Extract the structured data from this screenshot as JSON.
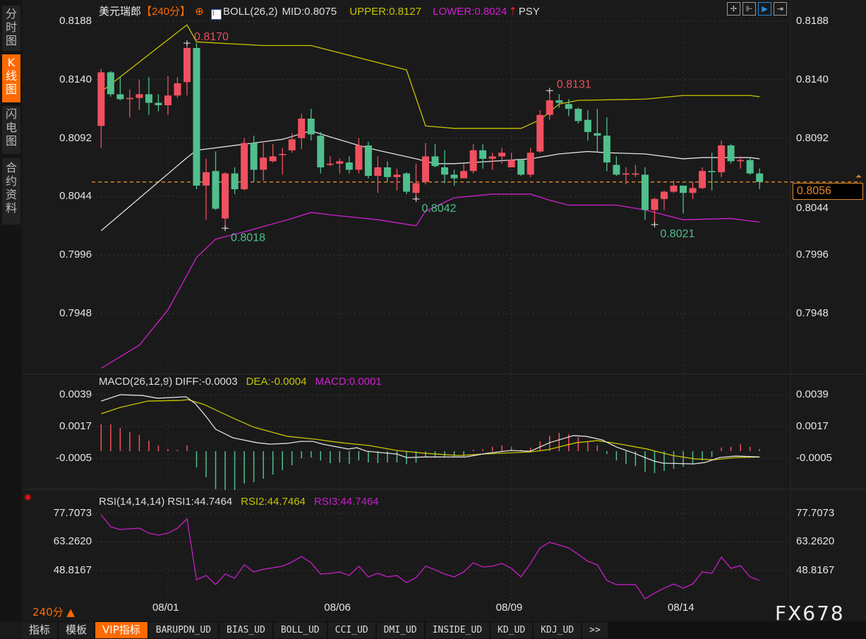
{
  "sidebar": {
    "items": [
      {
        "label": "分时图",
        "active": false
      },
      {
        "label": "K线图",
        "active": true
      },
      {
        "label": "闪电图",
        "active": false
      },
      {
        "label": "合约资料",
        "active": false
      }
    ]
  },
  "header": {
    "symbol": "美元瑞郎",
    "period": "【240分】",
    "boll_label": "BOLL(26,2)",
    "mid": "MID:0.8075",
    "upper": "UPPER:0.8127",
    "lower": "LOWER:0.8024",
    "psy": "PSY",
    "icon_globe": "globe-icon",
    "icon_indicator": "indicator-chart-icon",
    "icon_arrow": "red-up-arrow-icon"
  },
  "toolbar": {
    "icons": [
      "crosshair-icon",
      "zoom-range-icon",
      "play-cursor-icon",
      "scroll-end-icon"
    ],
    "active_index": 2
  },
  "colors": {
    "up": "#f0505f",
    "down": "#4fbf8d",
    "mid": "#e0e0e0",
    "upper": "#c8c400",
    "lower": "#d020d0",
    "diff": "#e0e0e0",
    "dea": "#c8c400",
    "rsi": "#c81ec8",
    "current": "#e08a2c",
    "accent": "#ff6a00"
  },
  "main_axis": {
    "ticks": [
      "0.8188",
      "0.8140",
      "0.8092",
      "0.8044",
      "0.7996",
      "0.7948"
    ],
    "tick_values": [
      0.8188,
      0.814,
      0.8092,
      0.8044,
      0.7996,
      0.7948
    ],
    "current_price": "0.8056",
    "current_value": 0.8056
  },
  "macd": {
    "title": "MACD(26,12,9)",
    "diff": "DIFF:-0.0003",
    "dea": "DEA:-0.0004",
    "macd": "MACD:0.0001",
    "ticks": [
      "0.0039",
      "0.0017",
      "-0.0005"
    ],
    "tick_values": [
      0.0039,
      0.0017,
      -0.0005
    ]
  },
  "rsi": {
    "title": "RSI(14,14,14)",
    "rsi1": "RSI1:44.7464",
    "rsi2": "RSI2:44.7464",
    "rsi3": "RSI3:44.7464",
    "ticks": [
      "77.7073",
      "63.2620",
      "48.8167"
    ],
    "tick_values": [
      77.7073,
      63.262,
      48.8167
    ],
    "icon": "sun-indicator-icon"
  },
  "footer": {
    "period": "240分 ▲",
    "brand": "FX678",
    "dates": [
      {
        "label": "08/01",
        "bar": 8
      },
      {
        "label": "08/06",
        "bar": 26
      },
      {
        "label": "08/09",
        "bar": 44
      },
      {
        "label": "08/14",
        "bar": 62
      }
    ]
  },
  "tabs": [
    {
      "label": "指标",
      "cn": true
    },
    {
      "label": "模板",
      "cn": true
    },
    {
      "label": "VIP指标",
      "cn": true,
      "active": true
    },
    {
      "label": "BARUPDN_UD"
    },
    {
      "label": "BIAS_UD"
    },
    {
      "label": "BOLL_UD"
    },
    {
      "label": "CCI_UD"
    },
    {
      "label": "DMI_UD"
    },
    {
      "label": "INSIDE_UD"
    },
    {
      "label": "KD_UD"
    },
    {
      "label": "KDJ_UD"
    },
    {
      "label": ">>"
    }
  ],
  "chart_data": {
    "type": "candlestick",
    "title": "美元瑞郎 240分",
    "ylim": [
      0.79,
      0.819
    ],
    "candles_ohlc": [
      [
        0.8102,
        0.8149,
        0.8084,
        0.8146
      ],
      [
        0.8146,
        0.8147,
        0.8126,
        0.8128
      ],
      [
        0.8128,
        0.8142,
        0.8123,
        0.8124
      ],
      [
        0.8124,
        0.8132,
        0.8109,
        0.8125
      ],
      [
        0.8125,
        0.814,
        0.8115,
        0.8128
      ],
      [
        0.8128,
        0.8142,
        0.8111,
        0.8121
      ],
      [
        0.8121,
        0.8128,
        0.8114,
        0.8119
      ],
      [
        0.8119,
        0.8143,
        0.8111,
        0.8127
      ],
      [
        0.8127,
        0.8142,
        0.8125,
        0.8137
      ],
      [
        0.8138,
        0.817,
        0.8127,
        0.8166
      ],
      [
        0.8166,
        0.817,
        0.805,
        0.8053
      ],
      [
        0.8053,
        0.8075,
        0.8025,
        0.8064
      ],
      [
        0.8065,
        0.8081,
        0.8033,
        0.8034
      ],
      [
        0.8026,
        0.8064,
        0.8018,
        0.8063
      ],
      [
        0.8063,
        0.8068,
        0.8046,
        0.805
      ],
      [
        0.805,
        0.8092,
        0.8049,
        0.8088
      ],
      [
        0.8088,
        0.8094,
        0.8056,
        0.8066
      ],
      [
        0.8066,
        0.8088,
        0.8057,
        0.8076
      ],
      [
        0.8073,
        0.8087,
        0.8072,
        0.8077
      ],
      [
        0.8078,
        0.8084,
        0.8062,
        0.8079
      ],
      [
        0.8082,
        0.8096,
        0.808,
        0.8091
      ],
      [
        0.8092,
        0.8112,
        0.8083,
        0.8108
      ],
      [
        0.8108,
        0.8116,
        0.809,
        0.8095
      ],
      [
        0.8094,
        0.8097,
        0.8063,
        0.8068
      ],
      [
        0.807,
        0.8077,
        0.8069,
        0.8071
      ],
      [
        0.8071,
        0.8075,
        0.8063,
        0.8073
      ],
      [
        0.8072,
        0.8077,
        0.8063,
        0.8066
      ],
      [
        0.8066,
        0.8092,
        0.8063,
        0.8086
      ],
      [
        0.8086,
        0.8089,
        0.8059,
        0.8061
      ],
      [
        0.8061,
        0.8077,
        0.8047,
        0.8068
      ],
      [
        0.8068,
        0.8073,
        0.8056,
        0.806
      ],
      [
        0.806,
        0.8067,
        0.8049,
        0.8062
      ],
      [
        0.8063,
        0.8064,
        0.8046,
        0.8048
      ],
      [
        0.8047,
        0.8071,
        0.8042,
        0.8055
      ],
      [
        0.8056,
        0.8088,
        0.8054,
        0.8077
      ],
      [
        0.8077,
        0.8087,
        0.8068,
        0.8069
      ],
      [
        0.8068,
        0.8082,
        0.8055,
        0.8062
      ],
      [
        0.8062,
        0.8066,
        0.8053,
        0.8059
      ],
      [
        0.8059,
        0.8071,
        0.8059,
        0.8065
      ],
      [
        0.8065,
        0.8087,
        0.8063,
        0.8082
      ],
      [
        0.8082,
        0.8087,
        0.8067,
        0.8075
      ],
      [
        0.8075,
        0.808,
        0.8066,
        0.8077
      ],
      [
        0.8077,
        0.8084,
        0.8071,
        0.808
      ],
      [
        0.8068,
        0.808,
        0.8068,
        0.8074
      ],
      [
        0.8074,
        0.8075,
        0.8061,
        0.8062
      ],
      [
        0.8062,
        0.8084,
        0.806,
        0.808
      ],
      [
        0.8081,
        0.8115,
        0.808,
        0.8111
      ],
      [
        0.8111,
        0.8131,
        0.8107,
        0.8123
      ],
      [
        0.8123,
        0.8128,
        0.8117,
        0.8121
      ],
      [
        0.812,
        0.8124,
        0.811,
        0.8116
      ],
      [
        0.8116,
        0.8117,
        0.8104,
        0.8106
      ],
      [
        0.8107,
        0.8115,
        0.809,
        0.8097
      ],
      [
        0.8096,
        0.8116,
        0.808,
        0.8094
      ],
      [
        0.8094,
        0.8109,
        0.8065,
        0.8072
      ],
      [
        0.807,
        0.8077,
        0.8061,
        0.8062
      ],
      [
        0.8062,
        0.8068,
        0.8054,
        0.8063
      ],
      [
        0.8062,
        0.807,
        0.806,
        0.8063
      ],
      [
        0.8062,
        0.8068,
        0.8025,
        0.8033
      ],
      [
        0.8033,
        0.8043,
        0.8021,
        0.8042
      ],
      [
        0.8042,
        0.8049,
        0.8033,
        0.8048
      ],
      [
        0.8048,
        0.8057,
        0.8047,
        0.8053
      ],
      [
        0.8053,
        0.8053,
        0.803,
        0.8047
      ],
      [
        0.8047,
        0.8056,
        0.8042,
        0.8051
      ],
      [
        0.8051,
        0.8068,
        0.805,
        0.8065
      ],
      [
        0.8065,
        0.808,
        0.8049,
        0.8064
      ],
      [
        0.8064,
        0.809,
        0.806,
        0.8086
      ],
      [
        0.8086,
        0.8087,
        0.8071,
        0.8073
      ],
      [
        0.8073,
        0.8077,
        0.8067,
        0.8074
      ],
      [
        0.8074,
        0.8076,
        0.8062,
        0.8063
      ],
      [
        0.8063,
        0.8067,
        0.805,
        0.8056
      ]
    ],
    "annotations": [
      {
        "bar": 10,
        "text": "0.8170",
        "kind": "high"
      },
      {
        "bar": 14,
        "text": "0.8018",
        "kind": "low"
      },
      {
        "bar": 34,
        "text": "0.8042",
        "kind": "low"
      },
      {
        "bar": 48,
        "text": "0.8131",
        "kind": "high"
      },
      {
        "bar": 59,
        "text": "0.8021",
        "kind": "low"
      }
    ],
    "boll_upper": [
      [
        1,
        0.813
      ],
      [
        10,
        0.8185
      ],
      [
        11,
        0.8171
      ],
      [
        18,
        0.8168
      ],
      [
        23,
        0.8168
      ],
      [
        33,
        0.8148
      ],
      [
        35,
        0.8102
      ],
      [
        38,
        0.81
      ],
      [
        45,
        0.81
      ],
      [
        47,
        0.8107
      ],
      [
        49,
        0.812
      ],
      [
        51,
        0.8123
      ],
      [
        58,
        0.8124
      ],
      [
        62,
        0.8127
      ],
      [
        69,
        0.8127
      ],
      [
        70,
        0.8126
      ]
    ],
    "boll_mid": [
      [
        1,
        0.8016
      ],
      [
        10,
        0.8076
      ],
      [
        11,
        0.8082
      ],
      [
        15,
        0.8086
      ],
      [
        20,
        0.8091
      ],
      [
        23,
        0.8098
      ],
      [
        25,
        0.8093
      ],
      [
        28,
        0.8086
      ],
      [
        30,
        0.8082
      ],
      [
        34,
        0.8075
      ],
      [
        36,
        0.8071
      ],
      [
        38,
        0.8071
      ],
      [
        44,
        0.8074
      ],
      [
        46,
        0.8075
      ],
      [
        49,
        0.8079
      ],
      [
        52,
        0.8081
      ],
      [
        54,
        0.808
      ],
      [
        58,
        0.8079
      ],
      [
        62,
        0.8075
      ],
      [
        64,
        0.8076
      ],
      [
        69,
        0.8076
      ],
      [
        70,
        0.8075
      ]
    ],
    "boll_lower": [
      [
        1,
        0.7903
      ],
      [
        5,
        0.7922
      ],
      [
        8,
        0.7951
      ],
      [
        11,
        0.7994
      ],
      [
        13,
        0.8009
      ],
      [
        16,
        0.8015
      ],
      [
        21,
        0.8026
      ],
      [
        23,
        0.8031
      ],
      [
        25,
        0.8029
      ],
      [
        30,
        0.8025
      ],
      [
        34,
        0.802
      ],
      [
        35,
        0.8032
      ],
      [
        38,
        0.8043
      ],
      [
        42,
        0.8046
      ],
      [
        46,
        0.8046
      ],
      [
        48,
        0.8041
      ],
      [
        50,
        0.8037
      ],
      [
        55,
        0.8037
      ],
      [
        58,
        0.8033
      ],
      [
        60,
        0.8029
      ],
      [
        62,
        0.8025
      ],
      [
        67,
        0.8026
      ],
      [
        70,
        0.8023
      ]
    ],
    "macd_hist": [
      0.00186,
      0.00186,
      0.00161,
      0.00132,
      0.00112,
      0.00073,
      0.00039,
      0.00015,
      0.0001,
      0.00039,
      -0.00112,
      -0.00181,
      -0.00264,
      -0.00269,
      -0.00269,
      -0.00225,
      -0.00215,
      -0.00191,
      -0.00161,
      -0.00132,
      -0.00098,
      -0.00049,
      -0.00044,
      -0.00064,
      -0.00083,
      -0.00078,
      -0.00088,
      -0.00064,
      -0.00078,
      -0.00083,
      -0.00078,
      -0.00078,
      -0.0009,
      -0.0008,
      -0.00044,
      -0.00044,
      -0.0004,
      -0.0004,
      -0.00035,
      0.0001,
      0.00015,
      0.0003,
      0.0004,
      0.0003,
      0.0001,
      0.00025,
      0.00068,
      0.00107,
      0.00127,
      0.00117,
      0.00098,
      0.00068,
      0.0004,
      -0.0002,
      -0.00064,
      -0.00088,
      -0.00103,
      -0.00142,
      -0.00152,
      -0.00137,
      -0.00122,
      -0.00108,
      -0.00093,
      -0.00064,
      -0.0004,
      0.00025,
      0.0003,
      0.00049,
      0.0003,
      0.00015
    ],
    "macd_diff": [
      [
        1,
        0.00347
      ],
      [
        3,
        0.00391
      ],
      [
        5.3,
        0.00386
      ],
      [
        6.9,
        0.00367
      ],
      [
        9.9,
        0.00377
      ],
      [
        10.9,
        0.00328
      ],
      [
        12,
        0.0024
      ],
      [
        13,
        0.00152
      ],
      [
        14.8,
        0.00093
      ],
      [
        17.3,
        0.00059
      ],
      [
        18.7,
        0.00049
      ],
      [
        20.5,
        0.00054
      ],
      [
        21.9,
        0.00068
      ],
      [
        23.2,
        0.00068
      ],
      [
        24.2,
        0.00049
      ],
      [
        26.9,
        0.00015
      ],
      [
        27.8,
        0.00024
      ],
      [
        28.8,
        0
      ],
      [
        32,
        -0.0002
      ],
      [
        33,
        -0.00044
      ],
      [
        35,
        -0.0004
      ],
      [
        37,
        -0.0004
      ],
      [
        39.2,
        -0.0004
      ],
      [
        41.4,
        -0.00015
      ],
      [
        43.9,
        5e-05
      ],
      [
        46,
        0
      ],
      [
        48,
        0.00059
      ],
      [
        50.5,
        0.00108
      ],
      [
        51.8,
        0.00103
      ],
      [
        53.5,
        0.00078
      ],
      [
        55,
        0.00029
      ],
      [
        56.9,
        -0.00015
      ],
      [
        58.9,
        -0.00068
      ],
      [
        59.9,
        -0.00083
      ],
      [
        63.1,
        -0.00088
      ],
      [
        64.3,
        -0.00078
      ],
      [
        65.8,
        -0.00044
      ],
      [
        67.5,
        -0.00034
      ],
      [
        70,
        -0.0004
      ]
    ],
    "macd_dea": [
      [
        1,
        0.00259
      ],
      [
        3,
        0.00303
      ],
      [
        5.9,
        0.00347
      ],
      [
        9.4,
        0.00352
      ],
      [
        10.1,
        0.00357
      ],
      [
        11.8,
        0.00323
      ],
      [
        14.8,
        0.0023
      ],
      [
        17,
        0.00166
      ],
      [
        20.5,
        0.00103
      ],
      [
        23.4,
        0.00083
      ],
      [
        26.1,
        0.00059
      ],
      [
        29.1,
        0.00039
      ],
      [
        32,
        5e-05
      ],
      [
        35,
        -0.00015
      ],
      [
        38.5,
        -0.0003
      ],
      [
        40.9,
        -0.0002
      ],
      [
        46,
        -5e-05
      ],
      [
        47.8,
        0.0001
      ],
      [
        50.8,
        0.00059
      ],
      [
        53,
        0.00073
      ],
      [
        55,
        0.00054
      ],
      [
        58.2,
        0.00015
      ],
      [
        60.9,
        -0.0003
      ],
      [
        63.3,
        -0.00054
      ],
      [
        65.3,
        -0.00059
      ],
      [
        67.5,
        -0.00044
      ],
      [
        70,
        -0.0004
      ]
    ],
    "rsi": [
      77.0,
      70.9,
      69.5,
      69.9,
      70.2,
      67.7,
      66.7,
      67.7,
      70.2,
      74.9,
      44.2,
      46.3,
      41.7,
      47.0,
      44.9,
      51.7,
      48.1,
      49.5,
      50.2,
      51.0,
      53.1,
      55.9,
      52.7,
      47.0,
      47.4,
      48.1,
      46.3,
      51.0,
      45.6,
      47.4,
      45.6,
      46.3,
      42.7,
      45.2,
      51.0,
      49.2,
      47.0,
      45.6,
      48.1,
      52.7,
      50.6,
      51.0,
      52.4,
      49.9,
      45.6,
      52.4,
      60.2,
      63.1,
      61.7,
      60.2,
      57.0,
      53.5,
      51.7,
      43.8,
      41.7,
      41.7,
      41.7,
      34.5,
      37.4,
      39.9,
      42.0,
      39.9,
      42.0,
      48.1,
      47.4,
      55.6,
      49.9,
      51.3,
      45.6,
      43.8
    ]
  }
}
